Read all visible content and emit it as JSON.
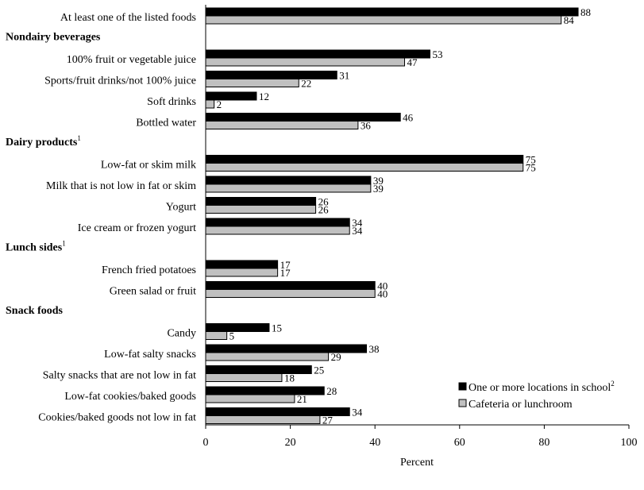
{
  "chart_data": {
    "type": "bar",
    "orientation": "horizontal",
    "xlabel": "Percent",
    "xlim": [
      0,
      100
    ],
    "xticks": [
      0,
      20,
      40,
      60,
      80,
      100
    ],
    "legend_position": "bottom-right",
    "series": [
      {
        "name": "One or more locations in school",
        "name_sup": "2",
        "color": "#000000"
      },
      {
        "name": "Cafeteria or lunchroom",
        "name_sup": "",
        "color": "#c0c0c0"
      }
    ],
    "groups": [
      {
        "heading": "",
        "heading_sup": "",
        "items": [
          {
            "label": "At least one of the listed foods",
            "values": [
              88,
              84
            ]
          }
        ]
      },
      {
        "heading": "Nondairy beverages",
        "heading_sup": "",
        "items": [
          {
            "label": "100% fruit or vegetable juice",
            "values": [
              53,
              47
            ]
          },
          {
            "label": "Sports/fruit drinks/not 100% juice",
            "values": [
              31,
              22
            ]
          },
          {
            "label": "Soft drinks",
            "values": [
              12,
              2
            ]
          },
          {
            "label": "Bottled water",
            "values": [
              46,
              36
            ]
          }
        ]
      },
      {
        "heading": "Dairy products",
        "heading_sup": "1",
        "items": [
          {
            "label": "Low-fat or skim milk",
            "values": [
              75,
              75
            ]
          },
          {
            "label": "Milk that is not low in fat or skim",
            "values": [
              39,
              39
            ]
          },
          {
            "label": "Yogurt",
            "values": [
              26,
              26
            ]
          },
          {
            "label": "Ice cream or frozen yogurt",
            "values": [
              34,
              34
            ]
          }
        ]
      },
      {
        "heading": "Lunch sides",
        "heading_sup": "1",
        "items": [
          {
            "label": "French fried potatoes",
            "values": [
              17,
              17
            ]
          },
          {
            "label": "Green salad or fruit",
            "values": [
              40,
              40
            ]
          }
        ]
      },
      {
        "heading": "Snack foods",
        "heading_sup": "",
        "items": [
          {
            "label": "Candy",
            "values": [
              15,
              5
            ]
          },
          {
            "label": "Low-fat salty snacks",
            "values": [
              38,
              29
            ]
          },
          {
            "label": "Salty snacks that are not low in fat",
            "values": [
              25,
              18
            ]
          },
          {
            "label": "Low-fat cookies/baked goods",
            "values": [
              28,
              21
            ]
          },
          {
            "label": "Cookies/baked goods not low in fat",
            "values": [
              34,
              27
            ]
          }
        ]
      }
    ]
  }
}
